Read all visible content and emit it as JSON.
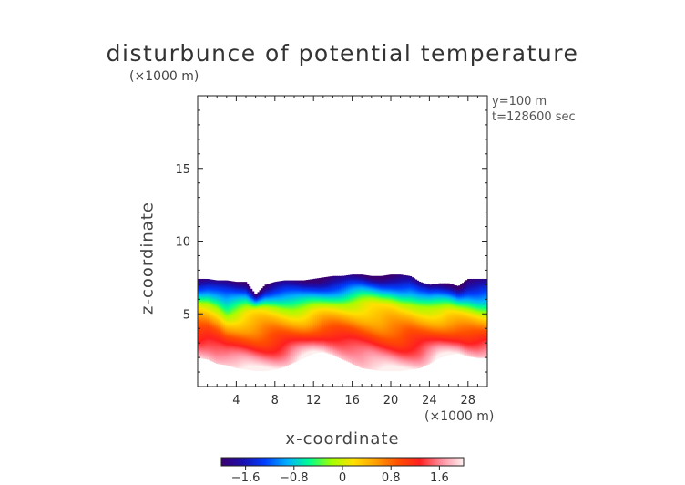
{
  "chart_data": {
    "type": "heatmap",
    "title": "disturbunce of potential temperature",
    "xlabel": "x-coordinate",
    "ylabel": "z-coordinate",
    "x_unit": "(×1000 m)",
    "y_unit": "(×1000 m)",
    "annotations": [
      "y=100 m",
      "t=128600 sec"
    ],
    "xlim": [
      0,
      30
    ],
    "ylim": [
      0,
      20
    ],
    "x_ticks": [
      4,
      8,
      12,
      16,
      20,
      24,
      28
    ],
    "y_ticks": [
      5,
      10,
      15
    ],
    "colorbar": {
      "range": [
        -2.0,
        2.0
      ],
      "ticks": [
        -1.6,
        -0.8,
        0,
        0.8,
        1.6
      ],
      "tick_labels": [
        "−1.6",
        "−0.8",
        "0",
        "0.8",
        "1.6"
      ],
      "colors": [
        "#3a0070",
        "#1a10b0",
        "#0040ff",
        "#00b0ff",
        "#00ff90",
        "#a0ff00",
        "#ffe000",
        "#ffa000",
        "#ff5000",
        "#ff2020",
        "#ff90a0",
        "#fff0f0"
      ]
    },
    "field_top_z": [
      7.4,
      7.4,
      7.3,
      7.3,
      7.2,
      7.2,
      6.3,
      7.0,
      7.2,
      7.3,
      7.3,
      7.3,
      7.4,
      7.5,
      7.6,
      7.6,
      7.7,
      7.7,
      7.6,
      7.6,
      7.7,
      7.7,
      7.6,
      7.2,
      7.0,
      7.1,
      7.1,
      6.9,
      7.4,
      7.4,
      7.4
    ],
    "field_bottom_z": [
      2.0,
      1.9,
      1.6,
      1.5,
      1.3,
      1.2,
      1.1,
      1.1,
      1.2,
      1.4,
      1.7,
      2.0,
      2.3,
      2.4,
      2.2,
      1.9,
      1.6,
      1.3,
      1.2,
      1.1,
      1.1,
      1.1,
      1.2,
      1.3,
      1.6,
      2.0,
      2.2,
      2.3,
      2.1,
      2.0,
      2.0
    ],
    "zero_line_z": [
      5.7,
      5.7,
      5.4,
      4.8,
      5.0,
      5.2,
      5.3,
      5.4,
      5.4,
      5.3,
      5.2,
      5.2,
      5.3,
      5.4,
      5.5,
      5.6,
      5.7,
      5.8,
      5.8,
      5.7,
      5.7,
      5.6,
      5.6,
      5.5,
      5.4,
      5.3,
      5.3,
      5.2,
      5.1,
      5.0,
      5.0
    ],
    "notes_values": {
      "top_value": -2.0,
      "bottom_value": 2.0
    }
  }
}
